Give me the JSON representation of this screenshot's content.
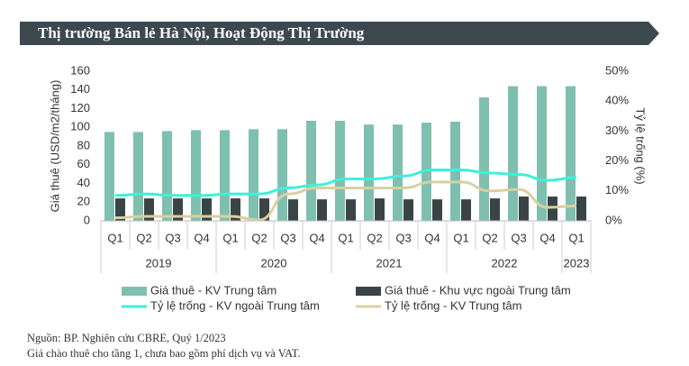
{
  "chart_data": {
    "type": "bar-line",
    "title": "Thị trường Bán lẻ Hà Nội, Hoạt Động Thị Trường",
    "categories": [
      "Q1",
      "Q2",
      "Q3",
      "Q4",
      "Q1",
      "Q2",
      "Q3",
      "Q4",
      "Q1",
      "Q2",
      "Q3",
      "Q4",
      "Q1",
      "Q2",
      "Q3",
      "Q4",
      "Q1"
    ],
    "years": [
      "2019",
      "2020",
      "2021",
      "2022",
      "2023"
    ],
    "y_label": "Giá thuê (USD/m2/tháng)",
    "y2_label": "Tỷ lệ trống (%)",
    "ylim": [
      0,
      160
    ],
    "yticks": [
      0,
      20,
      40,
      60,
      80,
      100,
      120,
      140,
      160
    ],
    "y2lim": [
      0,
      50
    ],
    "y2ticks": [
      {
        "value": 0,
        "label": "0%"
      },
      {
        "value": 10,
        "label": "10%"
      },
      {
        "value": 20,
        "label": "20%"
      },
      {
        "value": 30,
        "label": "30%"
      },
      {
        "value": 40,
        "label": "40%"
      },
      {
        "value": 50,
        "label": "50%"
      }
    ],
    "series": [
      {
        "name": "Giá thuê - KV Trung tâm",
        "type": "bar",
        "color": "#7fbfb0",
        "values": [
          95,
          95,
          96,
          97,
          97,
          98,
          98,
          107,
          107,
          103,
          103,
          105,
          106,
          132,
          144,
          144,
          144
        ]
      },
      {
        "name": "Giá thuê - Khu vực ngoài Trung tâm",
        "type": "bar",
        "color": "#3a4447",
        "values": [
          24,
          24,
          24,
          24,
          24,
          24,
          23,
          23,
          23,
          24,
          23,
          23,
          23,
          24,
          26,
          26,
          26
        ]
      },
      {
        "name": "Tỷ lệ trống - KV ngoài Trung tâm",
        "type": "line",
        "axis": "y2",
        "color": "#3ef0d8",
        "values": [
          8.5,
          9,
          8.5,
          8.5,
          9,
          9,
          11,
          12,
          14,
          14,
          15,
          17,
          17,
          16,
          15.5,
          13.5,
          14.5
        ]
      },
      {
        "name": "Tỷ lệ trống - KV Trung tâm",
        "type": "line",
        "axis": "y2",
        "color": "#d8d0a0",
        "values": [
          1,
          1.5,
          1.5,
          1.5,
          1.5,
          0.3,
          9,
          11,
          11,
          11,
          11,
          13,
          13,
          10,
          10.5,
          4.5,
          5
        ]
      }
    ],
    "sources": [
      "Nguồn: BP. Nghiên cứu CBRE, Quý 1/2023",
      "Giá chào thuê cho tầng 1, chưa bao gồm phí dịch vụ và VAT."
    ]
  }
}
